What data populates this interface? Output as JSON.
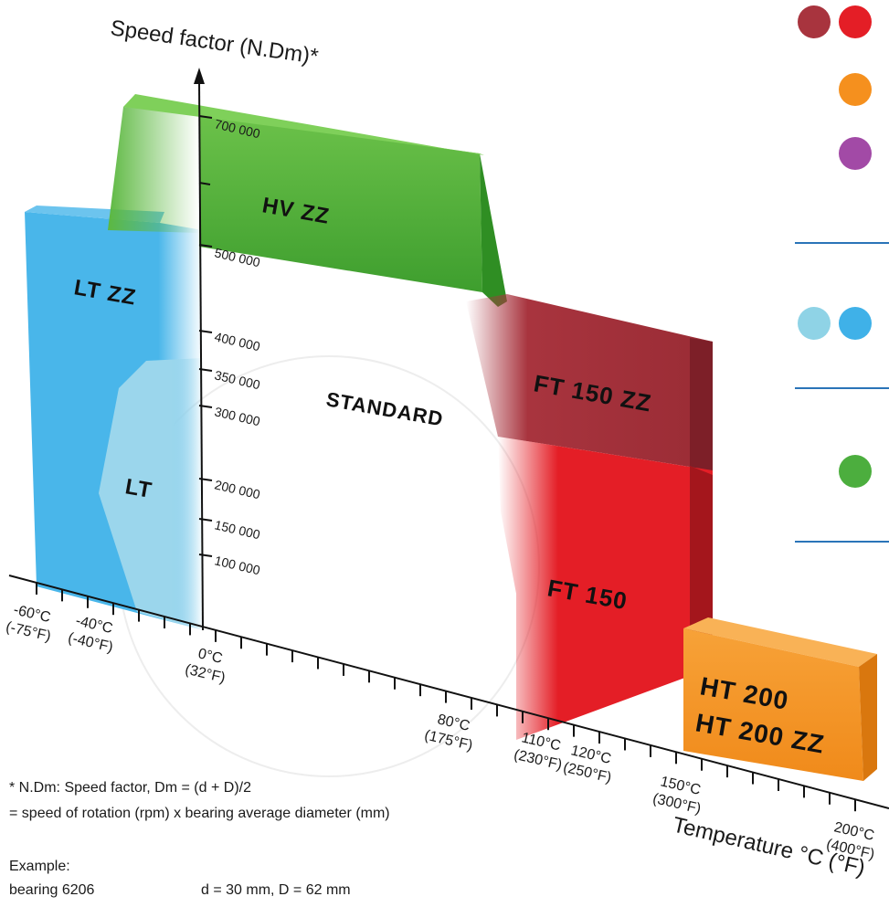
{
  "y_axis": {
    "title": "Speed factor (N.Dm)*",
    "ticks": [
      "700 000",
      "500 000",
      "400 000",
      "350 000",
      "300 000",
      "200 000",
      "150 000",
      "100 000"
    ]
  },
  "x_axis": {
    "title": "Temperature °C (°F)",
    "ticks": [
      {
        "c": "-60°C",
        "f": "(-75°F)"
      },
      {
        "c": "-40°C",
        "f": "(-40°F)"
      },
      {
        "c": "0°C",
        "f": "(32°F)"
      },
      {
        "c": "80°C",
        "f": "(175°F)"
      },
      {
        "c": "110°C",
        "f": "(230°F)"
      },
      {
        "c": "120°C",
        "f": "(250°F)"
      },
      {
        "c": "150°C",
        "f": "(300°F)"
      },
      {
        "c": "200°C",
        "f": "(400°F)"
      }
    ]
  },
  "zones": {
    "hv_zz": "HV ZZ",
    "lt_zz": "LT ZZ",
    "lt": "LT",
    "standard": "STANDARD",
    "ft150zz": "FT 150 ZZ",
    "ft150": "FT 150",
    "ht200": "HT 200",
    "ht200zz": "HT 200 ZZ"
  },
  "notes": {
    "line1": "* N.Dm: Speed factor, Dm = (d + D)/2",
    "line2": "= speed of rotation (rpm) x bearing average diameter (mm)",
    "line3": "Example:",
    "line4_label": "bearing 6206",
    "line4_value": "d = 30 mm, D = 62 mm"
  },
  "legend_colors": {
    "dark_red": "#a8343e",
    "red": "#e41e26",
    "orange": "#f5901e",
    "purple": "#a24aa6",
    "light_blue": "#8fd3e6",
    "blue": "#3fb1e8",
    "green": "#4cae3e",
    "rule_blue": "#2a74b8"
  }
}
